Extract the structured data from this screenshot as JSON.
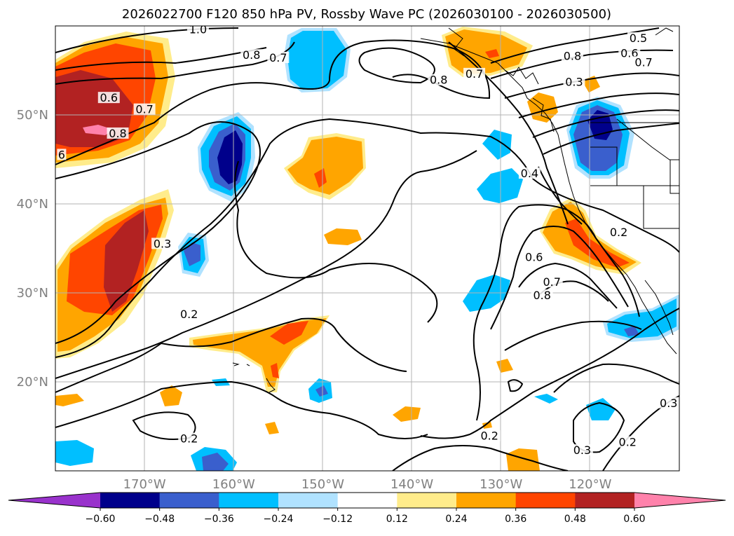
{
  "chart_data": {
    "type": "contour-map",
    "title": "2026022700 F120 850 hPa PV, Rossby Wave PC (2026030100 - 2026030500)",
    "lat_range": [
      10,
      60
    ],
    "lon_range": [
      -180,
      -110
    ],
    "lat_ticks": [
      {
        "value": 20,
        "label": "20°N"
      },
      {
        "value": 30,
        "label": "30°N"
      },
      {
        "value": 40,
        "label": "40°N"
      },
      {
        "value": 50,
        "label": "50°N"
      }
    ],
    "lon_ticks": [
      {
        "value": -170,
        "label": "170°W"
      },
      {
        "value": -160,
        "label": "160°W"
      },
      {
        "value": -150,
        "label": "150°W"
      },
      {
        "value": -140,
        "label": "140°W"
      },
      {
        "value": -130,
        "label": "130°W"
      },
      {
        "value": -120,
        "label": "120°W"
      }
    ],
    "colorbar": {
      "levels": [
        -0.6,
        -0.48,
        -0.36,
        -0.24,
        -0.12,
        0.12,
        0.24,
        0.36,
        0.48,
        0.6
      ],
      "tick_labels": [
        "−0.60",
        "−0.48",
        "−0.36",
        "−0.24",
        "−0.12",
        "0.12",
        "0.24",
        "0.36",
        "0.48",
        "0.60"
      ],
      "colors": [
        "#9932cc",
        "#00008b",
        "#3a5fcd",
        "#00bfff",
        "#b0e2ff",
        "#ffffff",
        "#ffec8b",
        "#ffa500",
        "#ff4500",
        "#b22222",
        "#ff82ab"
      ],
      "extend": "both"
    },
    "shaded_features": [
      {
        "name": "NE Pacific high-latitude positive anomaly",
        "lon": -174,
        "lat": 52,
        "peak": 0.6
      },
      {
        "name": "Central Pacific negative anomaly",
        "lon": -161,
        "lat": 45,
        "peak": -0.6
      },
      {
        "name": "Gulf of Alaska negative anomaly",
        "lon": -153,
        "lat": 56,
        "peak": -0.3
      },
      {
        "name": "Subtropical positive anomaly band",
        "lon": -174,
        "lat": 33,
        "peak": 0.5
      },
      {
        "name": "Mid-Pacific positive anomaly",
        "lon": -150,
        "lat": 45,
        "peak": 0.4
      },
      {
        "name": "Interior Northwest negative anomaly",
        "lon": -120,
        "lat": 47,
        "peak": -0.6
      },
      {
        "name": "California coast positive anomaly",
        "lon": -123,
        "lat": 35,
        "peak": 0.45
      },
      {
        "name": "SW US negative anomaly",
        "lon": -117,
        "lat": 26,
        "peak": -0.35
      }
    ],
    "contour_labels": [
      {
        "text": "1.0",
        "lon": -164,
        "lat": 59.5
      },
      {
        "text": "0.8",
        "lon": -158,
        "lat": 56.6
      },
      {
        "text": "0.7",
        "lon": -155,
        "lat": 56.3
      },
      {
        "text": "0.6",
        "lon": -174,
        "lat": 51.8
      },
      {
        "text": "0.7",
        "lon": -170,
        "lat": 50.5
      },
      {
        "text": "0.8",
        "lon": -173,
        "lat": 47.8
      },
      {
        "text": "6",
        "lon": -179.3,
        "lat": 45.4
      },
      {
        "text": "0.3",
        "lon": -168,
        "lat": 35.4
      },
      {
        "text": "0.2",
        "lon": -165,
        "lat": 27.5
      },
      {
        "text": "0.2",
        "lon": -165,
        "lat": 13.5
      },
      {
        "text": "0.8",
        "lon": -137,
        "lat": 53.8
      },
      {
        "text": "0.7",
        "lon": -133,
        "lat": 54.5
      },
      {
        "text": "0.5",
        "lon": -114.6,
        "lat": 58.5
      },
      {
        "text": "0.6",
        "lon": -115.6,
        "lat": 56.8
      },
      {
        "text": "0.7",
        "lon": -114,
        "lat": 55.8
      },
      {
        "text": "0.8",
        "lon": -122,
        "lat": 56.5
      },
      {
        "text": "0.3",
        "lon": -121.8,
        "lat": 53.6
      },
      {
        "text": "0.4",
        "lon": -126.8,
        "lat": 43.3
      },
      {
        "text": "0.2",
        "lon": -116.8,
        "lat": 36.7
      },
      {
        "text": "0.6",
        "lon": -126.3,
        "lat": 33.9
      },
      {
        "text": "0.7",
        "lon": -124.3,
        "lat": 31.1
      },
      {
        "text": "0.8",
        "lon": -125.4,
        "lat": 29.6
      },
      {
        "text": "0.3",
        "lon": -111.2,
        "lat": 17.5
      },
      {
        "text": "0.2",
        "lon": -115.8,
        "lat": 13.1
      },
      {
        "text": "0.3",
        "lon": -120.9,
        "lat": 12.2
      },
      {
        "text": "0.2",
        "lon": -131.3,
        "lat": 13.8
      }
    ]
  }
}
